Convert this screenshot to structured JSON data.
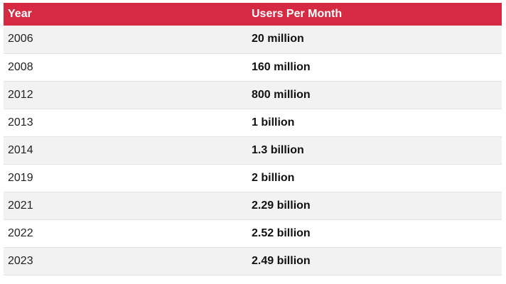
{
  "table": {
    "headers": [
      "Year",
      "Users Per Month"
    ],
    "rows": [
      {
        "year": "2006",
        "users": "20 million"
      },
      {
        "year": "2008",
        "users": "160 million"
      },
      {
        "year": "2012",
        "users": "800 million"
      },
      {
        "year": "2013",
        "users": "1 billion"
      },
      {
        "year": "2014",
        "users": "1.3 billion"
      },
      {
        "year": "2019",
        "users": "2 billion"
      },
      {
        "year": "2021",
        "users": "2.29 billion"
      },
      {
        "year": "2022",
        "users": "2.52 billion"
      },
      {
        "year": "2023",
        "users": "2.49 billion"
      }
    ]
  },
  "colors": {
    "header_background": "#d62a43",
    "header_text": "#ffffff",
    "stripe_background": "#f2f2f2"
  }
}
